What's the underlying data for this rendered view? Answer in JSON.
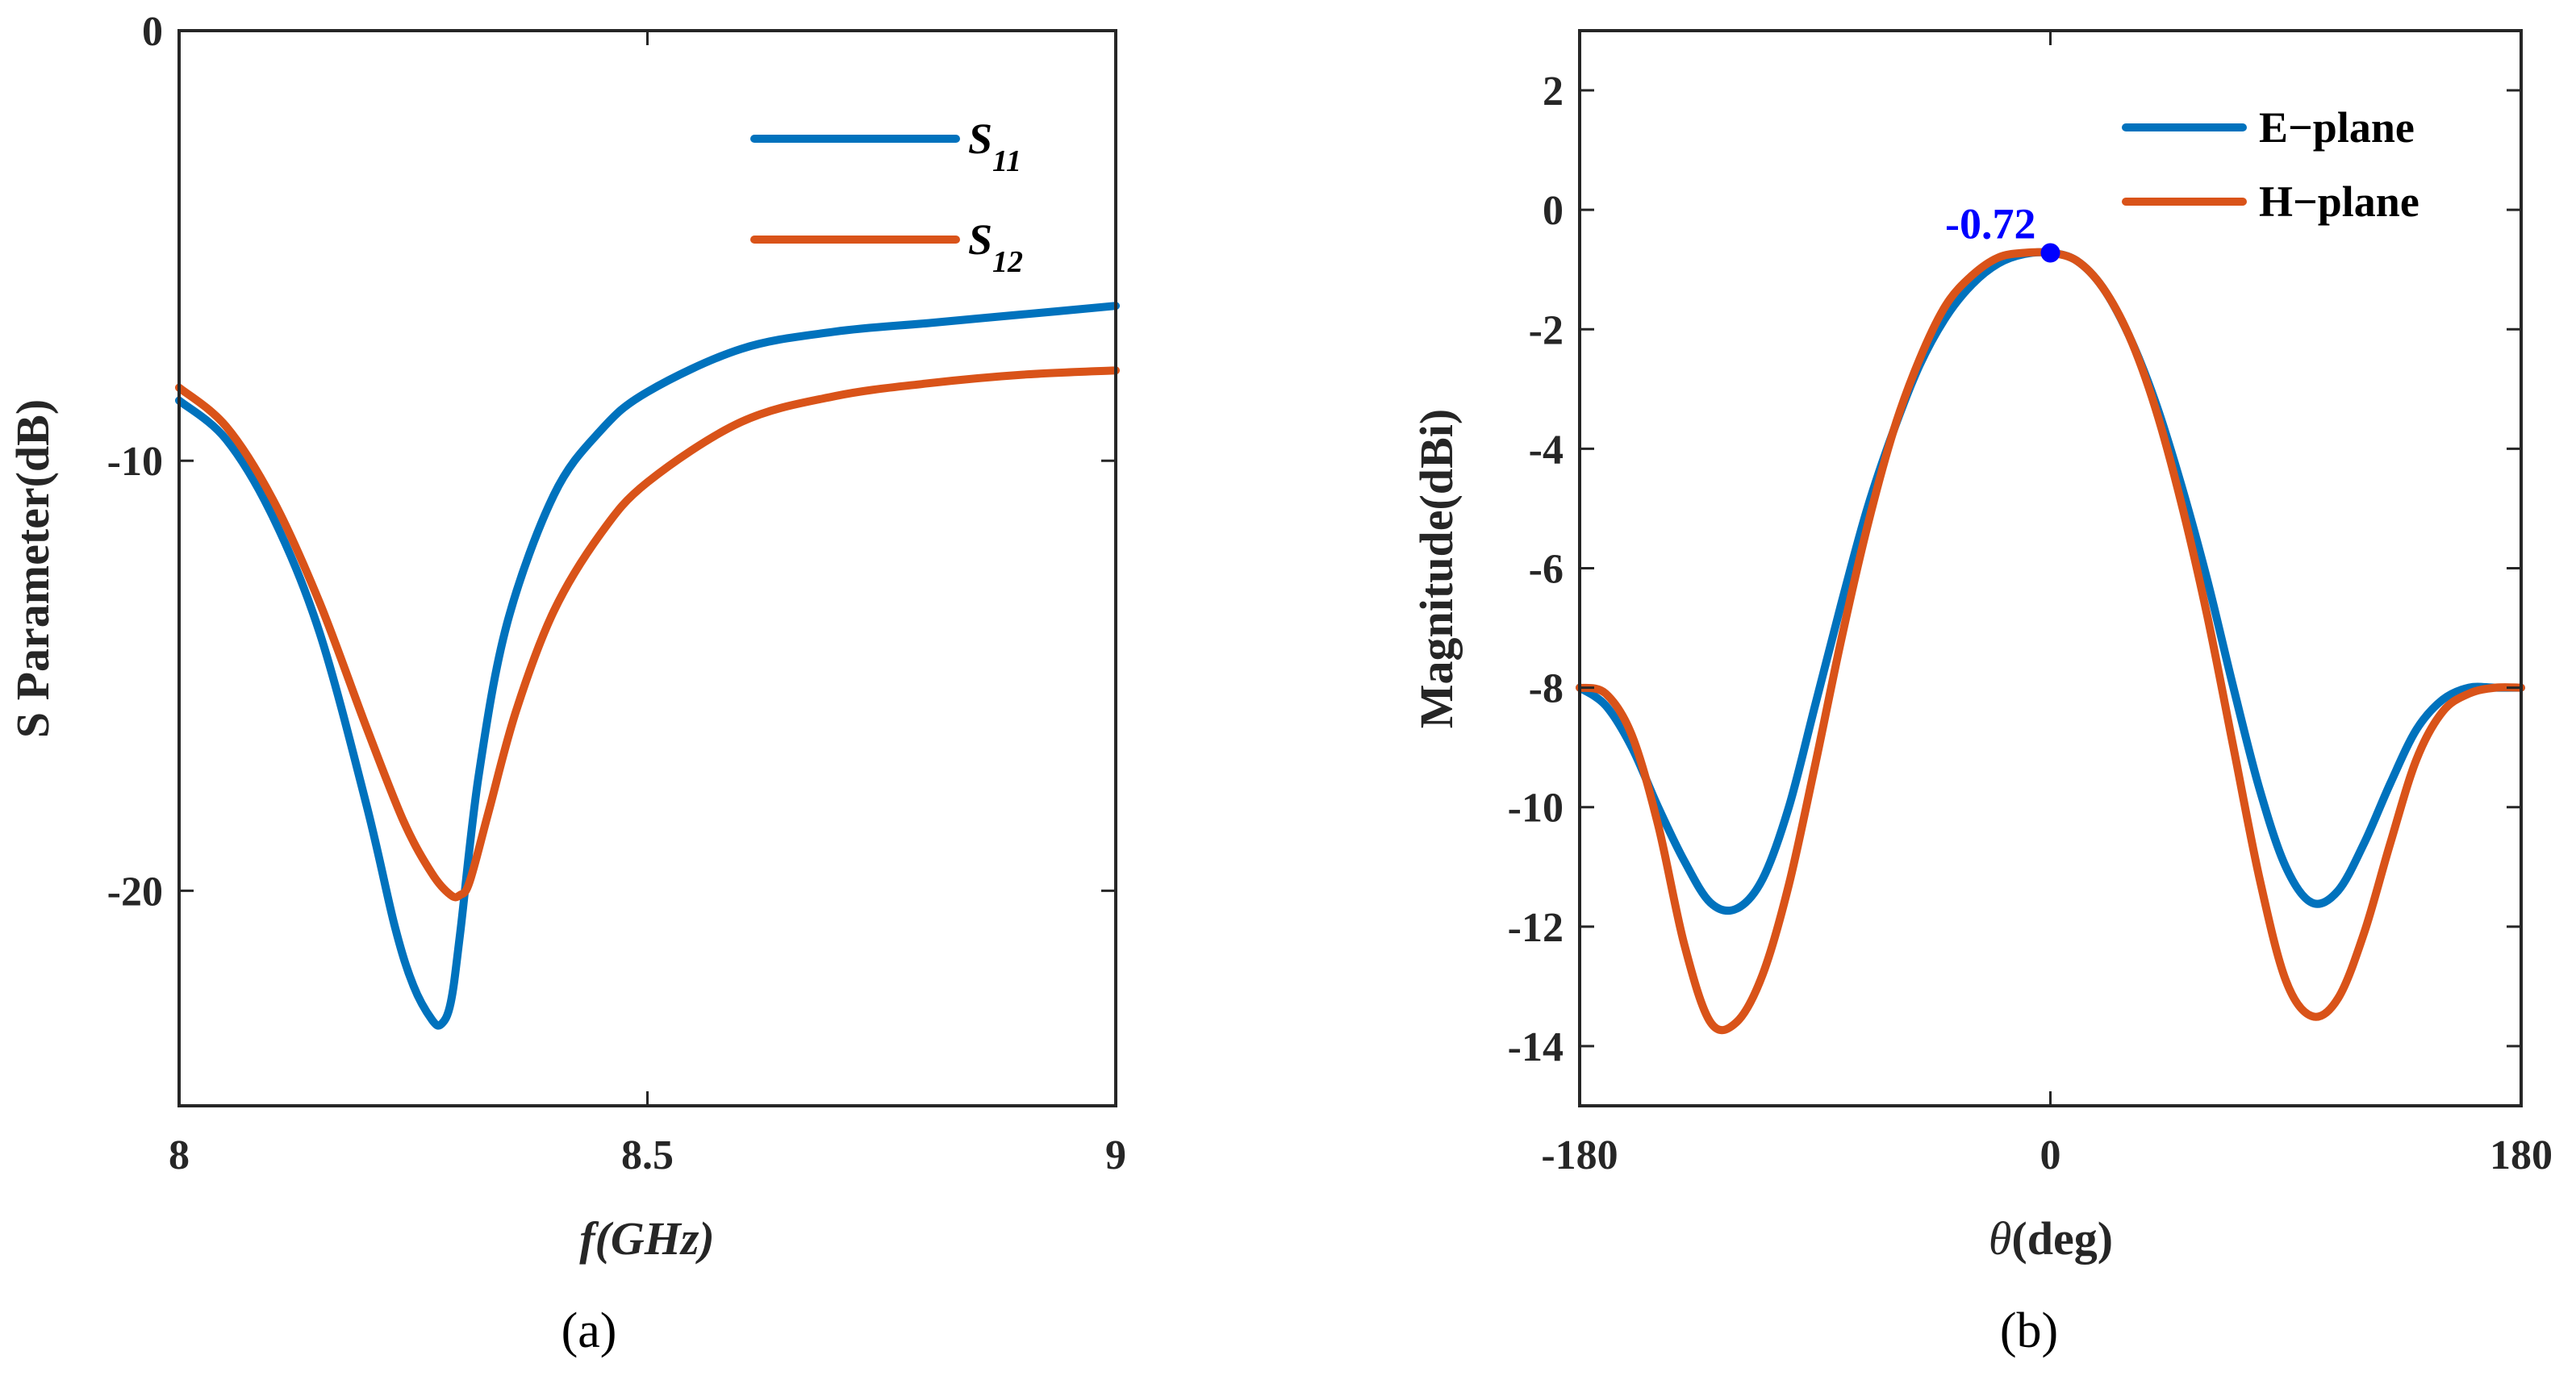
{
  "chart_data": [
    {
      "panel": "a",
      "type": "line",
      "caption": "(a)",
      "title": "",
      "xlabel": "f(GHz)",
      "ylabel": "S Parameter(dB)",
      "xlim": [
        8,
        9
      ],
      "ylim": [
        -25,
        0
      ],
      "xticks": [
        8,
        8.5,
        9
      ],
      "xtick_labels": [
        "8",
        "8.5",
        "9"
      ],
      "yticks": [
        0,
        -10,
        -20
      ],
      "ytick_labels": [
        "0",
        "-10",
        "-20"
      ],
      "legend_position": "top-right",
      "series": [
        {
          "name": "S11",
          "legend_main": "S",
          "legend_sub": "11",
          "color": "#0072BD",
          "x": [
            8.0,
            8.05,
            8.1,
            8.15,
            8.2,
            8.23,
            8.25,
            8.27,
            8.28,
            8.29,
            8.3,
            8.32,
            8.35,
            8.4,
            8.45,
            8.5,
            8.6,
            8.7,
            8.8,
            8.9,
            9.0
          ],
          "y": [
            -8.6,
            -9.5,
            -11.3,
            -14.0,
            -18.0,
            -20.8,
            -22.2,
            -23.0,
            -23.1,
            -22.6,
            -21.0,
            -17.3,
            -13.8,
            -10.8,
            -9.3,
            -8.4,
            -7.4,
            -7.0,
            -6.8,
            -6.6,
            -6.4
          ]
        },
        {
          "name": "S12",
          "legend_main": "S",
          "legend_sub": "12",
          "color": "#D95319",
          "x": [
            8.0,
            8.05,
            8.1,
            8.15,
            8.2,
            8.24,
            8.27,
            8.29,
            8.3,
            8.31,
            8.33,
            8.36,
            8.4,
            8.45,
            8.5,
            8.6,
            8.7,
            8.8,
            8.9,
            9.0
          ],
          "y": [
            -8.3,
            -9.2,
            -10.9,
            -13.3,
            -16.2,
            -18.4,
            -19.6,
            -20.1,
            -20.1,
            -19.8,
            -18.2,
            -15.8,
            -13.5,
            -11.7,
            -10.5,
            -9.1,
            -8.5,
            -8.2,
            -8.0,
            -7.9
          ]
        }
      ]
    },
    {
      "panel": "b",
      "type": "line",
      "caption": "(b)",
      "title": "",
      "xlabel_symbol": "θ",
      "xlabel_rest": "(deg)",
      "ylabel": "Magnitude(dBi)",
      "xlim": [
        -180,
        180
      ],
      "ylim": [
        -15,
        3
      ],
      "xticks": [
        -180,
        0,
        180
      ],
      "xtick_labels": [
        "-180",
        "0",
        "180"
      ],
      "yticks": [
        2,
        0,
        -2,
        -4,
        -6,
        -8,
        -10,
        -12,
        -14
      ],
      "ytick_labels": [
        "2",
        "0",
        "-2",
        "-4",
        "-6",
        "-8",
        "-10",
        "-12",
        "-14"
      ],
      "legend_position": "top-right",
      "annotation": {
        "text": "-0.72",
        "x": 0,
        "y": -0.72,
        "color": "#0000FF"
      },
      "series": [
        {
          "name": "E−plane",
          "color": "#0072BD",
          "x": [
            -180,
            -170,
            -160,
            -150,
            -140,
            -130,
            -120,
            -110,
            -100,
            -90,
            -80,
            -70,
            -60,
            -50,
            -40,
            -30,
            -20,
            -10,
            0,
            10,
            20,
            30,
            40,
            50,
            60,
            70,
            80,
            90,
            100,
            110,
            120,
            130,
            140,
            150,
            160,
            170,
            180
          ],
          "y": [
            -8.0,
            -8.3,
            -9.0,
            -10.0,
            -10.9,
            -11.6,
            -11.7,
            -11.2,
            -10.0,
            -8.3,
            -6.6,
            -5.0,
            -3.7,
            -2.6,
            -1.8,
            -1.25,
            -0.9,
            -0.74,
            -0.72,
            -0.85,
            -1.3,
            -2.1,
            -3.2,
            -4.6,
            -6.2,
            -8.0,
            -9.7,
            -11.0,
            -11.6,
            -11.4,
            -10.6,
            -9.6,
            -8.7,
            -8.2,
            -8.0,
            -8.0,
            -8.0
          ]
        },
        {
          "name": "H−plane",
          "color": "#D95319",
          "x": [
            -180,
            -170,
            -160,
            -150,
            -140,
            -130,
            -120,
            -110,
            -100,
            -90,
            -80,
            -70,
            -60,
            -50,
            -40,
            -30,
            -20,
            -10,
            0,
            10,
            20,
            30,
            40,
            50,
            60,
            70,
            80,
            90,
            100,
            110,
            120,
            130,
            140,
            150,
            160,
            170,
            180
          ],
          "y": [
            -8.0,
            -8.1,
            -8.8,
            -10.3,
            -12.3,
            -13.6,
            -13.6,
            -12.8,
            -11.3,
            -9.3,
            -7.2,
            -5.3,
            -3.7,
            -2.5,
            -1.6,
            -1.1,
            -0.8,
            -0.72,
            -0.72,
            -0.85,
            -1.3,
            -2.1,
            -3.3,
            -4.9,
            -6.8,
            -9.0,
            -11.2,
            -12.9,
            -13.5,
            -13.2,
            -12.1,
            -10.6,
            -9.2,
            -8.4,
            -8.1,
            -8.0,
            -8.0
          ]
        }
      ]
    }
  ]
}
